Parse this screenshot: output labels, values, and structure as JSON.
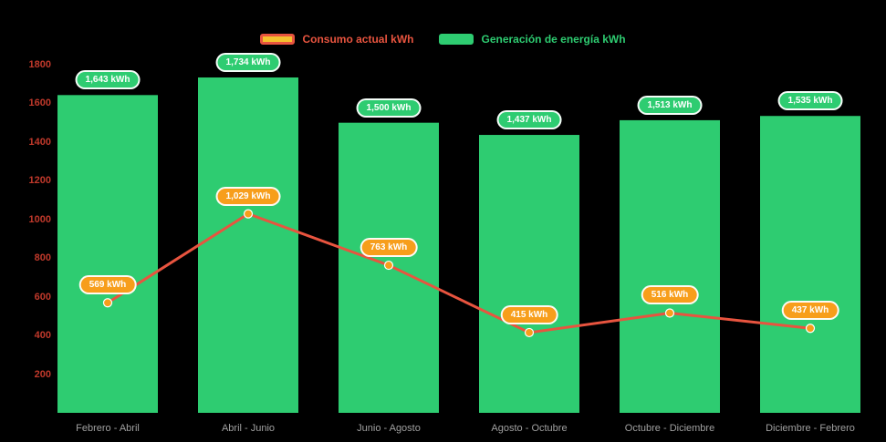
{
  "colors": {
    "background": "#000000",
    "bar": "#2ecc71",
    "line": "#e8543f",
    "point": "#f79e1b",
    "bar_label_bg": "#2ecc71",
    "line_label_bg": "#f79e1b",
    "legend_line_marker_fill": "#f5c02e",
    "y_tick_text": "#c0392b",
    "x_label_text": "#a0a0a0"
  },
  "chart_data": {
    "type": "bar",
    "title": "",
    "xlabel": "",
    "ylabel": "",
    "categories": [
      "Febrero - Abril",
      "Abril - Junio",
      "Junio - Agosto",
      "Agosto - Octubre",
      "Octubre - Diciembre",
      "Diciembre - Febrero"
    ],
    "series": [
      {
        "name": "Consumo actual kWh",
        "type": "line",
        "color": "#e8543f",
        "point_color": "#f79e1b",
        "values": [
          569,
          1029,
          763,
          415,
          516,
          437
        ],
        "labels": [
          "569 kWh",
          "1,029 kWh",
          "763 kWh",
          "415 kWh",
          "516 kWh",
          "437 kWh"
        ]
      },
      {
        "name": "Generación de energía kWh",
        "type": "bar",
        "color": "#2ecc71",
        "values": [
          1643,
          1734,
          1500,
          1437,
          1513,
          1535
        ],
        "labels": [
          "1,643 kWh",
          "1,734 kWh",
          "1,500 kWh",
          "1,437 kWh",
          "1,513 kWh",
          "1,535 kWh"
        ]
      }
    ],
    "y_ticks": [
      200,
      400,
      600,
      800,
      1000,
      1200,
      1400,
      1600,
      1800
    ],
    "ylim": [
      0,
      1800
    ],
    "grid": false,
    "legend_position": "top"
  }
}
